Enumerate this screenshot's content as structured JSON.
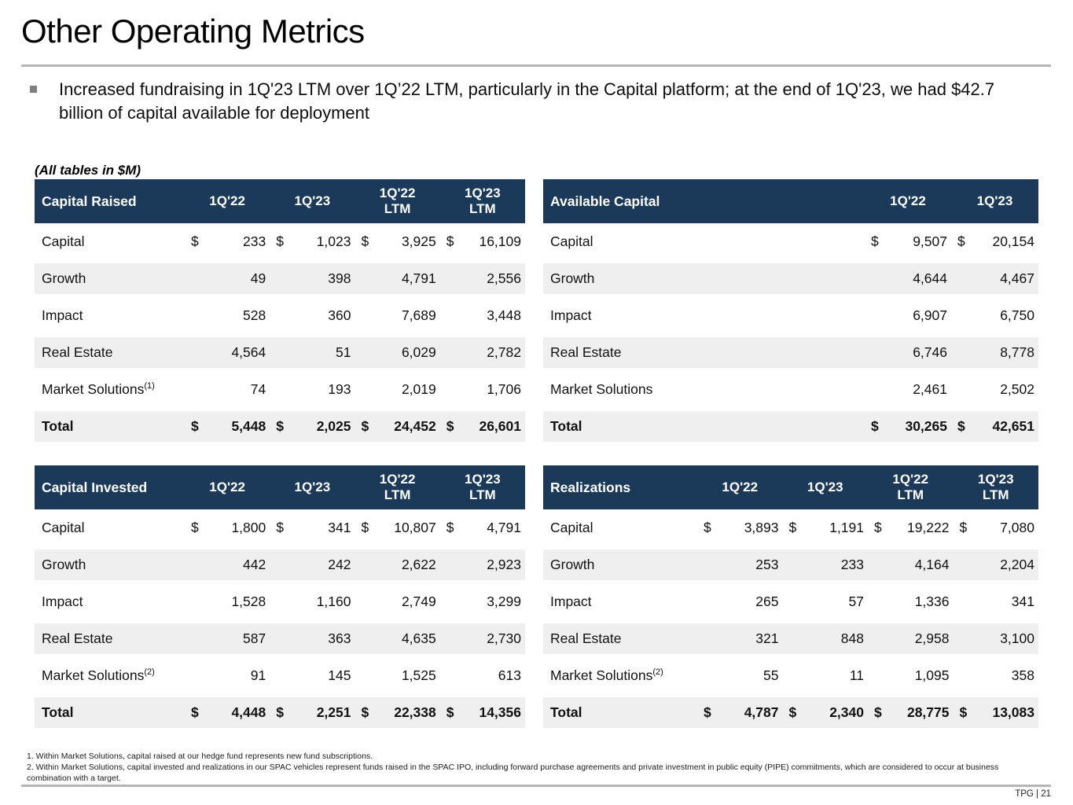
{
  "slide": {
    "title": "Other Operating Metrics",
    "bullet": "Increased fundraising in 1Q'23 LTM over 1Q’22 LTM, particularly in the Capital platform; at the end of 1Q'23, we had $42.7 billion of capital available for deployment",
    "tables_note": "(All tables in $M)",
    "page_label": "TPG | 21"
  },
  "colors": {
    "header_bg": "#1b3a5a",
    "stripe": "#efefef",
    "rule": "#b5b5b5",
    "bullet": "#7f7f7f"
  },
  "footnotes": [
    "1. Within Market Solutions, capital raised at our hedge fund represents new fund subscriptions.",
    "2. Within Market Solutions, capital invested and realizations in our SPAC vehicles represent funds raised in the SPAC IPO, including forward purchase agreements and private investment in public equity (PIPE) commitments, which are considered to occur at business combination with a target."
  ],
  "tables": [
    {
      "title": "Capital Raised",
      "columns": [
        "1Q'22",
        "1Q'23",
        "1Q'22\nLTM",
        "1Q'23\nLTM"
      ],
      "rows": [
        {
          "label": "Capital",
          "sup": "",
          "dollar": true,
          "total": false,
          "values": [
            "233",
            "1,023",
            "3,925",
            "16,109"
          ]
        },
        {
          "label": "Growth",
          "sup": "",
          "dollar": false,
          "total": false,
          "values": [
            "49",
            "398",
            "4,791",
            "2,556"
          ]
        },
        {
          "label": "Impact",
          "sup": "",
          "dollar": false,
          "total": false,
          "values": [
            "528",
            "360",
            "7,689",
            "3,448"
          ]
        },
        {
          "label": "Real Estate",
          "sup": "",
          "dollar": false,
          "total": false,
          "values": [
            "4,564",
            "51",
            "6,029",
            "2,782"
          ]
        },
        {
          "label": "Market Solutions",
          "sup": "(1)",
          "dollar": false,
          "total": false,
          "values": [
            "74",
            "193",
            "2,019",
            "1,706"
          ]
        },
        {
          "label": "Total",
          "sup": "",
          "dollar": true,
          "total": true,
          "values": [
            "5,448",
            "2,025",
            "24,452",
            "26,601"
          ]
        }
      ]
    },
    {
      "title": "Available Capital",
      "columns": [
        "1Q'22",
        "1Q'23"
      ],
      "rows": [
        {
          "label": "Capital",
          "sup": "",
          "dollar": true,
          "total": false,
          "values": [
            "9,507",
            "20,154"
          ]
        },
        {
          "label": "Growth",
          "sup": "",
          "dollar": false,
          "total": false,
          "values": [
            "4,644",
            "4,467"
          ]
        },
        {
          "label": "Impact",
          "sup": "",
          "dollar": false,
          "total": false,
          "values": [
            "6,907",
            "6,750"
          ]
        },
        {
          "label": "Real Estate",
          "sup": "",
          "dollar": false,
          "total": false,
          "values": [
            "6,746",
            "8,778"
          ]
        },
        {
          "label": "Market Solutions",
          "sup": "",
          "dollar": false,
          "total": false,
          "values": [
            "2,461",
            "2,502"
          ]
        },
        {
          "label": "Total",
          "sup": "",
          "dollar": true,
          "total": true,
          "values": [
            "30,265",
            "42,651"
          ]
        }
      ]
    },
    {
      "title": "Capital Invested",
      "columns": [
        "1Q'22",
        "1Q'23",
        "1Q'22\nLTM",
        "1Q'23\nLTM"
      ],
      "rows": [
        {
          "label": "Capital",
          "sup": "",
          "dollar": true,
          "total": false,
          "values": [
            "1,800",
            "341",
            "10,807",
            "4,791"
          ]
        },
        {
          "label": "Growth",
          "sup": "",
          "dollar": false,
          "total": false,
          "values": [
            "442",
            "242",
            "2,622",
            "2,923"
          ]
        },
        {
          "label": "Impact",
          "sup": "",
          "dollar": false,
          "total": false,
          "values": [
            "1,528",
            "1,160",
            "2,749",
            "3,299"
          ]
        },
        {
          "label": "Real Estate",
          "sup": "",
          "dollar": false,
          "total": false,
          "values": [
            "587",
            "363",
            "4,635",
            "2,730"
          ]
        },
        {
          "label": "Market Solutions",
          "sup": "(2)",
          "dollar": false,
          "total": false,
          "values": [
            "91",
            "145",
            "1,525",
            "613"
          ]
        },
        {
          "label": "Total",
          "sup": "",
          "dollar": true,
          "total": true,
          "values": [
            "4,448",
            "2,251",
            "22,338",
            "14,356"
          ]
        }
      ]
    },
    {
      "title": "Realizations",
      "columns": [
        "1Q'22",
        "1Q'23",
        "1Q'22\nLTM",
        "1Q'23\nLTM"
      ],
      "rows": [
        {
          "label": "Capital",
          "sup": "",
          "dollar": true,
          "total": false,
          "values": [
            "3,893",
            "1,191",
            "19,222",
            "7,080"
          ]
        },
        {
          "label": "Growth",
          "sup": "",
          "dollar": false,
          "total": false,
          "values": [
            "253",
            "233",
            "4,164",
            "2,204"
          ]
        },
        {
          "label": "Impact",
          "sup": "",
          "dollar": false,
          "total": false,
          "values": [
            "265",
            "57",
            "1,336",
            "341"
          ]
        },
        {
          "label": "Real Estate",
          "sup": "",
          "dollar": false,
          "total": false,
          "values": [
            "321",
            "848",
            "2,958",
            "3,100"
          ]
        },
        {
          "label": "Market Solutions",
          "sup": "(2)",
          "dollar": false,
          "total": false,
          "values": [
            "55",
            "11",
            "1,095",
            "358"
          ]
        },
        {
          "label": "Total",
          "sup": "",
          "dollar": true,
          "total": true,
          "values": [
            "4,787",
            "2,340",
            "28,775",
            "13,083"
          ]
        }
      ]
    }
  ]
}
